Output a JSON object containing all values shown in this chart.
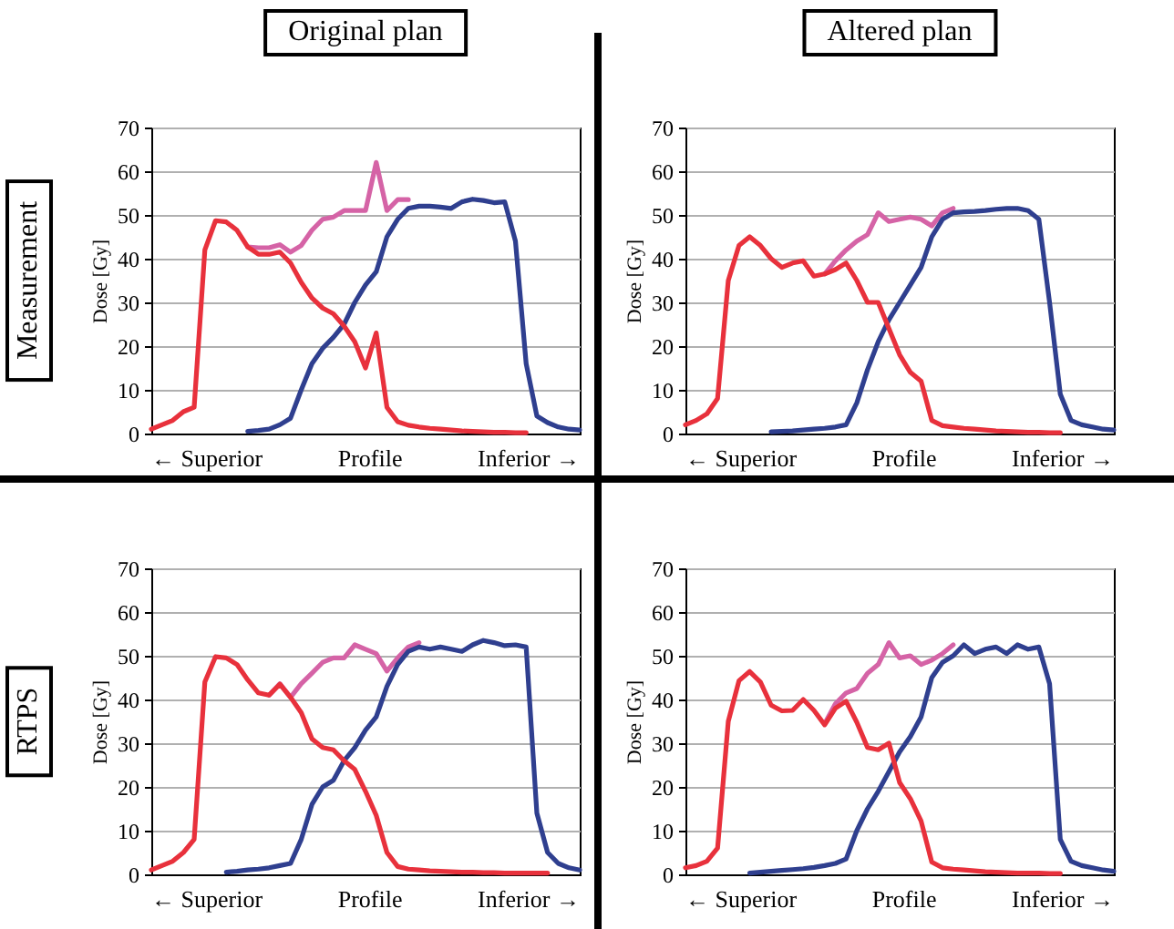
{
  "chart_data": [
    {
      "type": "line",
      "title": "Original plan",
      "subtitle": "Measurement",
      "ylabel": "Dose [Gy]",
      "annotations": [
        "← Superior",
        "Profile",
        "Inferior →"
      ],
      "categories": [
        null,
        null,
        null,
        null,
        null,
        null,
        null,
        null,
        null,
        null,
        null,
        null,
        null,
        null,
        null,
        null,
        null,
        null,
        null,
        null,
        null,
        null,
        null,
        null,
        null,
        null,
        null,
        null,
        null,
        null,
        null,
        null,
        null,
        null,
        null,
        null,
        null,
        null,
        null,
        null,
        null
      ],
      "ylim": [
        0,
        70
      ],
      "yticks": [
        0,
        10,
        20,
        30,
        40,
        50,
        60,
        70
      ],
      "grid": "y",
      "series": [
        {
          "color": "#d563a6",
          "values": [
            null,
            null,
            null,
            null,
            null,
            null,
            null,
            null,
            null,
            42.7,
            42.5,
            42.5,
            43.2,
            41.5,
            43,
            46.5,
            49,
            49.5,
            51,
            51,
            51,
            62,
            51,
            53.5,
            53.5,
            null,
            null,
            null,
            null,
            null,
            null,
            null,
            null,
            null,
            null,
            null,
            null,
            null,
            null,
            null,
            null
          ]
        },
        {
          "color": "#2f3f8f",
          "values": [
            null,
            null,
            null,
            null,
            null,
            null,
            null,
            null,
            null,
            0.5,
            0.7,
            1,
            2,
            3.5,
            10,
            16,
            19.5,
            22,
            25,
            30,
            34,
            37,
            45,
            49,
            51.5,
            52,
            52,
            51.8,
            51.5,
            53,
            53.6,
            53.3,
            52.8,
            53,
            44,
            16,
            4,
            2.5,
            1.5,
            1,
            0.8
          ]
        },
        {
          "color": "#e8313c",
          "values": [
            1,
            2,
            3,
            5,
            6,
            42,
            48.7,
            48.4,
            46.5,
            42.7,
            41,
            41,
            41.5,
            39,
            34.6,
            31,
            28.7,
            27.4,
            24.6,
            21,
            15,
            23,
            6,
            2.7,
            1.9,
            1.5,
            1.2,
            1,
            0.8,
            0.6,
            0.5,
            0.4,
            0.3,
            0.3,
            0.2,
            0.2,
            null,
            null,
            null,
            null,
            null
          ]
        }
      ]
    },
    {
      "type": "line",
      "title": "Altered plan",
      "ylabel": "Dose [Gy]",
      "annotations": [
        "← Superior",
        "Profile",
        "Inferior →"
      ],
      "categories": [
        null,
        null,
        null,
        null,
        null,
        null,
        null,
        null,
        null,
        null,
        null,
        null,
        null,
        null,
        null,
        null,
        null,
        null,
        null,
        null,
        null,
        null,
        null,
        null,
        null,
        null,
        null,
        null,
        null,
        null,
        null,
        null,
        null,
        null,
        null,
        null,
        null,
        null,
        null,
        null,
        null
      ],
      "ylim": [
        0,
        70
      ],
      "yticks": [
        0,
        10,
        20,
        30,
        40,
        50,
        60,
        70
      ],
      "grid": "y",
      "series": [
        {
          "color": "#d563a6",
          "values": [
            null,
            null,
            null,
            null,
            null,
            null,
            null,
            null,
            null,
            null,
            null,
            null,
            null,
            36.5,
            39.5,
            42,
            44,
            45.5,
            50.5,
            48.5,
            49,
            49.5,
            49,
            47.5,
            50.5,
            51.5,
            null,
            null,
            null,
            null,
            null,
            null,
            null,
            null,
            null,
            null,
            null,
            null,
            null,
            null,
            null
          ]
        },
        {
          "color": "#2f3f8f",
          "values": [
            null,
            null,
            null,
            null,
            null,
            null,
            null,
            null,
            0.4,
            0.5,
            0.6,
            0.8,
            1,
            1.2,
            1.5,
            2,
            7,
            14.6,
            21,
            26,
            30,
            34,
            38,
            45,
            49,
            50.5,
            50.7,
            50.8,
            51,
            51.3,
            51.5,
            51.5,
            51,
            49,
            30,
            9,
            3,
            2,
            1.5,
            1,
            0.8
          ]
        },
        {
          "color": "#e8313c",
          "values": [
            2,
            3,
            4.5,
            8,
            35,
            43,
            45,
            43,
            40,
            38,
            39,
            39.5,
            36,
            36.5,
            37.5,
            39,
            35,
            30,
            30,
            24,
            18,
            14,
            12,
            3,
            1.8,
            1.5,
            1.2,
            1,
            0.8,
            0.6,
            0.5,
            0.4,
            0.3,
            0.3,
            0.2,
            0.2,
            null,
            null,
            null,
            null,
            null
          ]
        }
      ]
    },
    {
      "type": "line",
      "subtitle": "RTPS",
      "ylabel": "Dose [Gy]",
      "annotations": [
        "← Superior",
        "Profile",
        "Inferior →"
      ],
      "categories": [
        null,
        null,
        null,
        null,
        null,
        null,
        null,
        null,
        null,
        null,
        null,
        null,
        null,
        null,
        null,
        null,
        null,
        null,
        null,
        null,
        null,
        null,
        null,
        null,
        null,
        null,
        null,
        null,
        null,
        null,
        null,
        null,
        null,
        null,
        null,
        null,
        null,
        null,
        null,
        null,
        null
      ],
      "ylim": [
        0,
        70
      ],
      "yticks": [
        0,
        10,
        20,
        30,
        40,
        50,
        60,
        70
      ],
      "grid": "y",
      "series": [
        {
          "color": "#d563a6",
          "values": [
            null,
            null,
            null,
            null,
            null,
            null,
            null,
            null,
            null,
            null,
            null,
            41,
            43.6,
            40.5,
            43.6,
            46,
            48.5,
            49.5,
            49.5,
            52.5,
            51.5,
            50.5,
            46.5,
            49.5,
            52,
            53,
            null,
            null,
            null,
            null,
            null,
            null,
            null,
            null,
            null,
            null,
            null,
            null,
            null,
            null,
            null
          ]
        },
        {
          "color": "#2f3f8f",
          "values": [
            null,
            null,
            null,
            null,
            null,
            null,
            null,
            0.5,
            0.7,
            1,
            1.2,
            1.5,
            2,
            2.5,
            8,
            16,
            20,
            21.5,
            26,
            29,
            33,
            36,
            43,
            48,
            51,
            52,
            51.5,
            52,
            51.5,
            51,
            52.5,
            53.5,
            53,
            52.3,
            52.5,
            52,
            14,
            5,
            2.5,
            1.5,
            1
          ]
        },
        {
          "color": "#e8313c",
          "values": [
            1,
            2,
            3,
            5,
            8,
            44,
            49.8,
            49.5,
            48,
            44.5,
            41.5,
            41,
            43.5,
            40.5,
            37,
            31,
            29,
            28.5,
            26,
            24,
            19,
            13.5,
            5,
            1.8,
            1.2,
            1,
            0.8,
            0.7,
            0.6,
            0.5,
            0.5,
            0.4,
            0.4,
            0.3,
            0.3,
            0.3,
            0.3,
            0.3,
            null,
            null,
            null
          ]
        }
      ]
    },
    {
      "type": "line",
      "ylabel": "Dose [Gy]",
      "annotations": [
        "← Superior",
        "Profile",
        "Inferior →"
      ],
      "categories": [
        null,
        null,
        null,
        null,
        null,
        null,
        null,
        null,
        null,
        null,
        null,
        null,
        null,
        null,
        null,
        null,
        null,
        null,
        null,
        null,
        null,
        null,
        null,
        null,
        null,
        null,
        null,
        null,
        null,
        null,
        null,
        null,
        null,
        null,
        null,
        null,
        null,
        null,
        null,
        null,
        null
      ],
      "ylim": [
        0,
        70
      ],
      "yticks": [
        0,
        10,
        20,
        30,
        40,
        50,
        60,
        70
      ],
      "grid": "y",
      "series": [
        {
          "color": "#d563a6",
          "values": [
            null,
            null,
            null,
            null,
            null,
            null,
            null,
            null,
            null,
            null,
            null,
            null,
            null,
            34.5,
            39,
            41.5,
            42.5,
            46,
            48,
            53,
            49.5,
            50,
            48,
            49,
            50.5,
            52.5,
            null,
            null,
            null,
            null,
            null,
            null,
            null,
            null,
            null,
            null,
            null,
            null,
            null,
            null,
            null
          ]
        },
        {
          "color": "#2f3f8f",
          "values": [
            null,
            null,
            null,
            null,
            null,
            null,
            0.3,
            0.5,
            0.7,
            0.9,
            1.1,
            1.3,
            1.6,
            2,
            2.5,
            3.5,
            10,
            15,
            19,
            23.5,
            28,
            31.5,
            36,
            45,
            48.5,
            50,
            52.5,
            50.5,
            51.5,
            52,
            50.5,
            52.5,
            51.5,
            52,
            43.6,
            8,
            3,
            2,
            1.5,
            1,
            0.7
          ]
        },
        {
          "color": "#e8313c",
          "values": [
            1.5,
            2,
            3,
            6,
            35,
            44.3,
            46.4,
            44,
            38.7,
            37.4,
            37.5,
            40,
            37.5,
            34.2,
            38,
            39.6,
            34.8,
            29,
            28.5,
            30,
            21,
            17.3,
            12.2,
            2.8,
            1.5,
            1.2,
            1,
            0.8,
            0.6,
            0.5,
            0.4,
            0.3,
            0.3,
            0.3,
            0.2,
            0.2,
            null,
            null,
            null,
            null,
            null
          ]
        }
      ]
    }
  ]
}
